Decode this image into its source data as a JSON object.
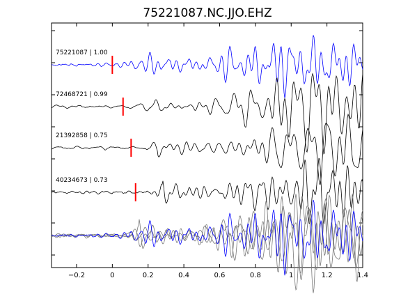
{
  "chart_data": {
    "type": "line",
    "title": "75221087.NC.JJO.EHZ",
    "xlabel": "",
    "ylabel": "",
    "xlim": [
      -0.34,
      1.4
    ],
    "xticks": [
      -0.2,
      0,
      0.2,
      0.4,
      0.6,
      0.8,
      1,
      1.2,
      1.4
    ],
    "xtick_labels": [
      "−0.2",
      "0",
      "0.2",
      "0.4",
      "0.6",
      "0.8",
      "1",
      "1.2",
      "1.4"
    ],
    "grid": false,
    "legend": "none",
    "colors": {
      "reference": "#0000ff",
      "match": "#000000",
      "overlay": "#777777",
      "pick": "#ff0000"
    },
    "series": [
      {
        "label": "75221087 | 1.00",
        "pick_time": 0.0,
        "color": "#0000ff"
      },
      {
        "label": "72468721 | 0.99",
        "pick_time": 0.06,
        "color": "#000000"
      },
      {
        "label": "21392858 | 0.75",
        "pick_time": 0.105,
        "color": "#000000"
      },
      {
        "label": "40234673 | 0.73",
        "pick_time": 0.13,
        "color": "#000000"
      }
    ],
    "stacked_overlay": true
  }
}
